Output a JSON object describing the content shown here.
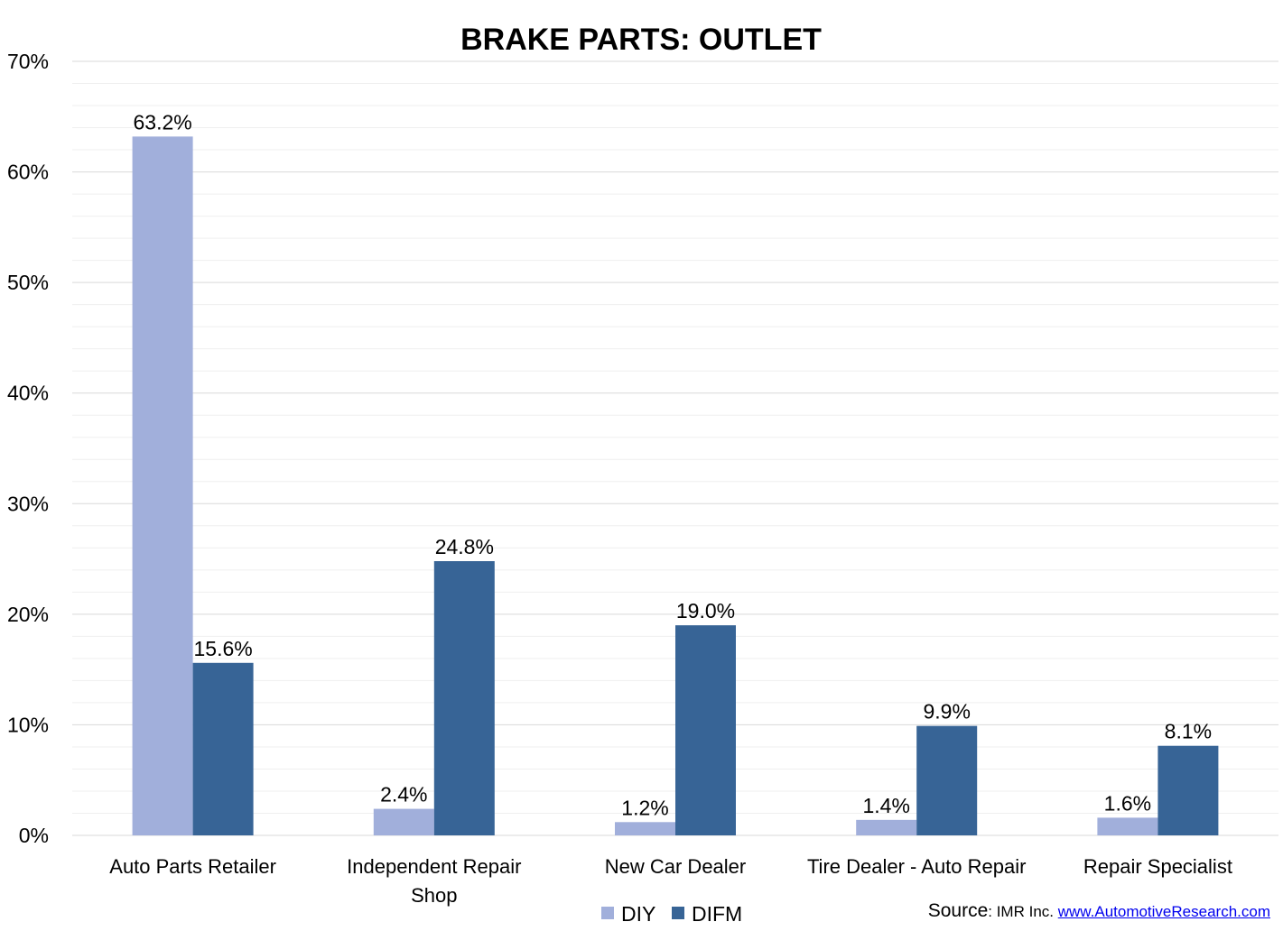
{
  "chart_data": {
    "type": "bar",
    "title": "BRAKE PARTS: OUTLET",
    "categories": [
      [
        "Auto Parts Retailer"
      ],
      [
        "Independent Repair",
        "Shop"
      ],
      [
        "New Car Dealer"
      ],
      [
        "Tire Dealer - Auto Repair"
      ],
      [
        "Repair Specialist"
      ]
    ],
    "series": [
      {
        "name": "DIY",
        "color": "#a1afdb",
        "values": [
          63.2,
          2.4,
          1.2,
          1.4,
          1.6
        ],
        "labels": [
          "63.2%",
          "2.4%",
          "1.2%",
          "1.4%",
          "1.6%"
        ]
      },
      {
        "name": "DIFM",
        "color": "#376496",
        "values": [
          15.6,
          24.8,
          19.0,
          9.9,
          8.1
        ],
        "labels": [
          "15.6%",
          "24.8%",
          "19.0%",
          "9.9%",
          "8.1%"
        ]
      }
    ],
    "ylim": [
      0,
      70
    ],
    "yticks": [
      0,
      10,
      20,
      30,
      40,
      50,
      60,
      70
    ],
    "ytick_labels": [
      "0%",
      "10%",
      "20%",
      "30%",
      "40%",
      "50%",
      "60%",
      "70%"
    ],
    "minor_grid_step": 2,
    "grid": true,
    "legend_position": "bottom-center",
    "xlabel": "",
    "ylabel": ""
  },
  "source": {
    "lead": "Source",
    "text": ": IMR Inc. ",
    "link_text": "www.AutomotiveResearch.com"
  },
  "colors": {
    "major_grid": "#d9d9d9",
    "minor_grid": "#efefef"
  }
}
